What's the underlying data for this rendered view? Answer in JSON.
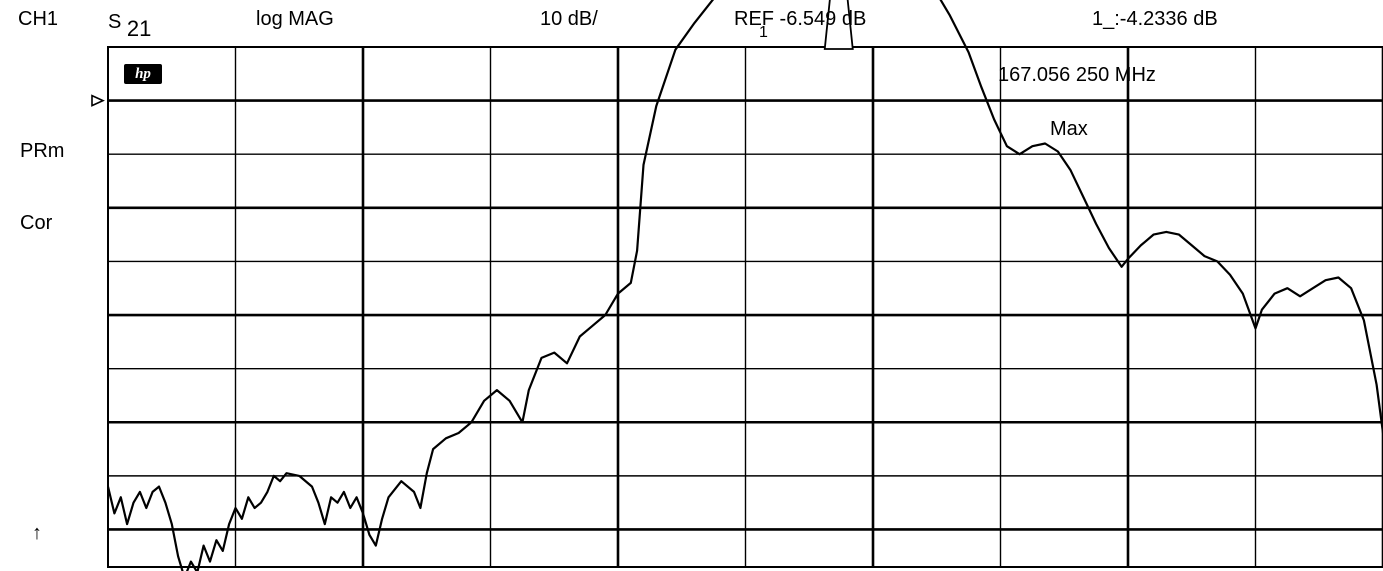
{
  "header": {
    "channel": "CH1",
    "param_letter": "S",
    "param_sub": "21",
    "format": "log MAG",
    "scale": "10 dB/",
    "ref": "REF -6.549 dB",
    "marker_readout": "1_:-4.2336 dB"
  },
  "side": {
    "prm": "PRm",
    "cor": "Cor",
    "arrow": "↑"
  },
  "marker": {
    "number": "1",
    "freq": "167.056 250 MHz",
    "mode": "Max"
  },
  "logo": "hp",
  "chart_data": {
    "type": "line",
    "title": "",
    "xlabel": "",
    "ylabel": "",
    "grid": true,
    "divisions_x": 10,
    "divisions_y": 9,
    "series": [
      {
        "values": [
          [
            0.0,
            -7.2
          ],
          [
            0.05,
            -7.7
          ],
          [
            0.1,
            -7.4
          ],
          [
            0.15,
            -7.9
          ],
          [
            0.2,
            -7.5
          ],
          [
            0.25,
            -7.3
          ],
          [
            0.3,
            -7.6
          ],
          [
            0.35,
            -7.3
          ],
          [
            0.4,
            -7.2
          ],
          [
            0.45,
            -7.5
          ],
          [
            0.5,
            -7.9
          ],
          [
            0.55,
            -8.5
          ],
          [
            0.6,
            -8.9
          ],
          [
            0.65,
            -8.6
          ],
          [
            0.7,
            -8.8
          ],
          [
            0.75,
            -8.3
          ],
          [
            0.8,
            -8.6
          ],
          [
            0.85,
            -8.2
          ],
          [
            0.9,
            -8.4
          ],
          [
            0.95,
            -7.9
          ],
          [
            1.0,
            -7.6
          ],
          [
            1.05,
            -7.8
          ],
          [
            1.1,
            -7.4
          ],
          [
            1.15,
            -7.6
          ],
          [
            1.2,
            -7.5
          ],
          [
            1.25,
            -7.3
          ],
          [
            1.3,
            -7.0
          ],
          [
            1.35,
            -7.1
          ],
          [
            1.4,
            -6.95
          ],
          [
            1.5,
            -7.0
          ],
          [
            1.6,
            -7.2
          ],
          [
            1.65,
            -7.5
          ],
          [
            1.7,
            -7.9
          ],
          [
            1.75,
            -7.4
          ],
          [
            1.8,
            -7.5
          ],
          [
            1.85,
            -7.3
          ],
          [
            1.9,
            -7.6
          ],
          [
            1.95,
            -7.4
          ],
          [
            2.0,
            -7.7
          ],
          [
            2.05,
            -8.1
          ],
          [
            2.1,
            -8.3
          ],
          [
            2.15,
            -7.8
          ],
          [
            2.2,
            -7.4
          ],
          [
            2.3,
            -7.1
          ],
          [
            2.4,
            -7.3
          ],
          [
            2.45,
            -7.6
          ],
          [
            2.5,
            -6.95
          ],
          [
            2.55,
            -6.5
          ],
          [
            2.65,
            -6.3
          ],
          [
            2.75,
            -6.2
          ],
          [
            2.85,
            -6.0
          ],
          [
            2.95,
            -5.6
          ],
          [
            3.05,
            -5.4
          ],
          [
            3.15,
            -5.6
          ],
          [
            3.25,
            -6.0
          ],
          [
            3.3,
            -5.4
          ],
          [
            3.4,
            -4.8
          ],
          [
            3.5,
            -4.7
          ],
          [
            3.6,
            -4.9
          ],
          [
            3.7,
            -4.4
          ],
          [
            3.8,
            -4.2
          ],
          [
            3.9,
            -4.0
          ],
          [
            4.0,
            -3.6
          ],
          [
            4.1,
            -3.4
          ],
          [
            4.15,
            -2.8
          ],
          [
            4.2,
            -1.2
          ],
          [
            4.3,
            -0.1
          ],
          [
            4.45,
            0.95
          ],
          [
            4.6,
            1.45
          ],
          [
            4.8,
            2.05
          ],
          [
            5.0,
            2.55
          ],
          [
            5.2,
            3.05
          ],
          [
            5.4,
            3.35
          ],
          [
            5.6,
            3.4
          ],
          [
            5.7,
            3.45
          ],
          [
            5.8,
            3.45
          ],
          [
            6.0,
            3.4
          ],
          [
            6.2,
            3.0
          ],
          [
            6.4,
            2.4
          ],
          [
            6.6,
            1.6
          ],
          [
            6.75,
            0.9
          ],
          [
            6.85,
            0.25
          ],
          [
            6.95,
            -0.35
          ],
          [
            7.05,
            -0.85
          ],
          [
            7.15,
            -1.0
          ],
          [
            7.25,
            -0.85
          ],
          [
            7.35,
            -0.8
          ],
          [
            7.45,
            -0.95
          ],
          [
            7.55,
            -1.3
          ],
          [
            7.65,
            -1.8
          ],
          [
            7.75,
            -2.3
          ],
          [
            7.85,
            -2.75
          ],
          [
            7.95,
            -3.1
          ],
          [
            8.0,
            -2.95
          ],
          [
            8.1,
            -2.7
          ],
          [
            8.2,
            -2.5
          ],
          [
            8.3,
            -2.45
          ],
          [
            8.4,
            -2.5
          ],
          [
            8.5,
            -2.7
          ],
          [
            8.6,
            -2.9
          ],
          [
            8.7,
            -3.0
          ],
          [
            8.8,
            -3.25
          ],
          [
            8.9,
            -3.6
          ],
          [
            9.0,
            -4.25
          ],
          [
            9.05,
            -3.9
          ],
          [
            9.15,
            -3.6
          ],
          [
            9.25,
            -3.5
          ],
          [
            9.35,
            -3.65
          ],
          [
            9.45,
            -3.5
          ],
          [
            9.55,
            -3.35
          ],
          [
            9.65,
            -3.3
          ],
          [
            9.75,
            -3.5
          ],
          [
            9.85,
            -4.1
          ],
          [
            9.95,
            -5.3
          ],
          [
            10.0,
            -6.2
          ],
          [
            10.05,
            -7.1
          ],
          [
            10.1,
            -8.2
          ],
          [
            10.2,
            -7.3
          ],
          [
            10.3,
            -5.7
          ],
          [
            10.4,
            -4.7
          ],
          [
            10.5,
            -4.0
          ],
          [
            10.6,
            -3.4
          ],
          [
            10.7,
            -3.1
          ],
          [
            10.8,
            -2.95
          ],
          [
            10.9,
            -2.9
          ],
          [
            11.0,
            -2.95
          ],
          [
            11.1,
            -3.2
          ],
          [
            11.2,
            -3.5
          ],
          [
            11.3,
            -3.9
          ],
          [
            11.4,
            -4.6
          ],
          [
            11.5,
            -5.6
          ],
          [
            11.56,
            -6.5
          ]
        ]
      }
    ]
  }
}
